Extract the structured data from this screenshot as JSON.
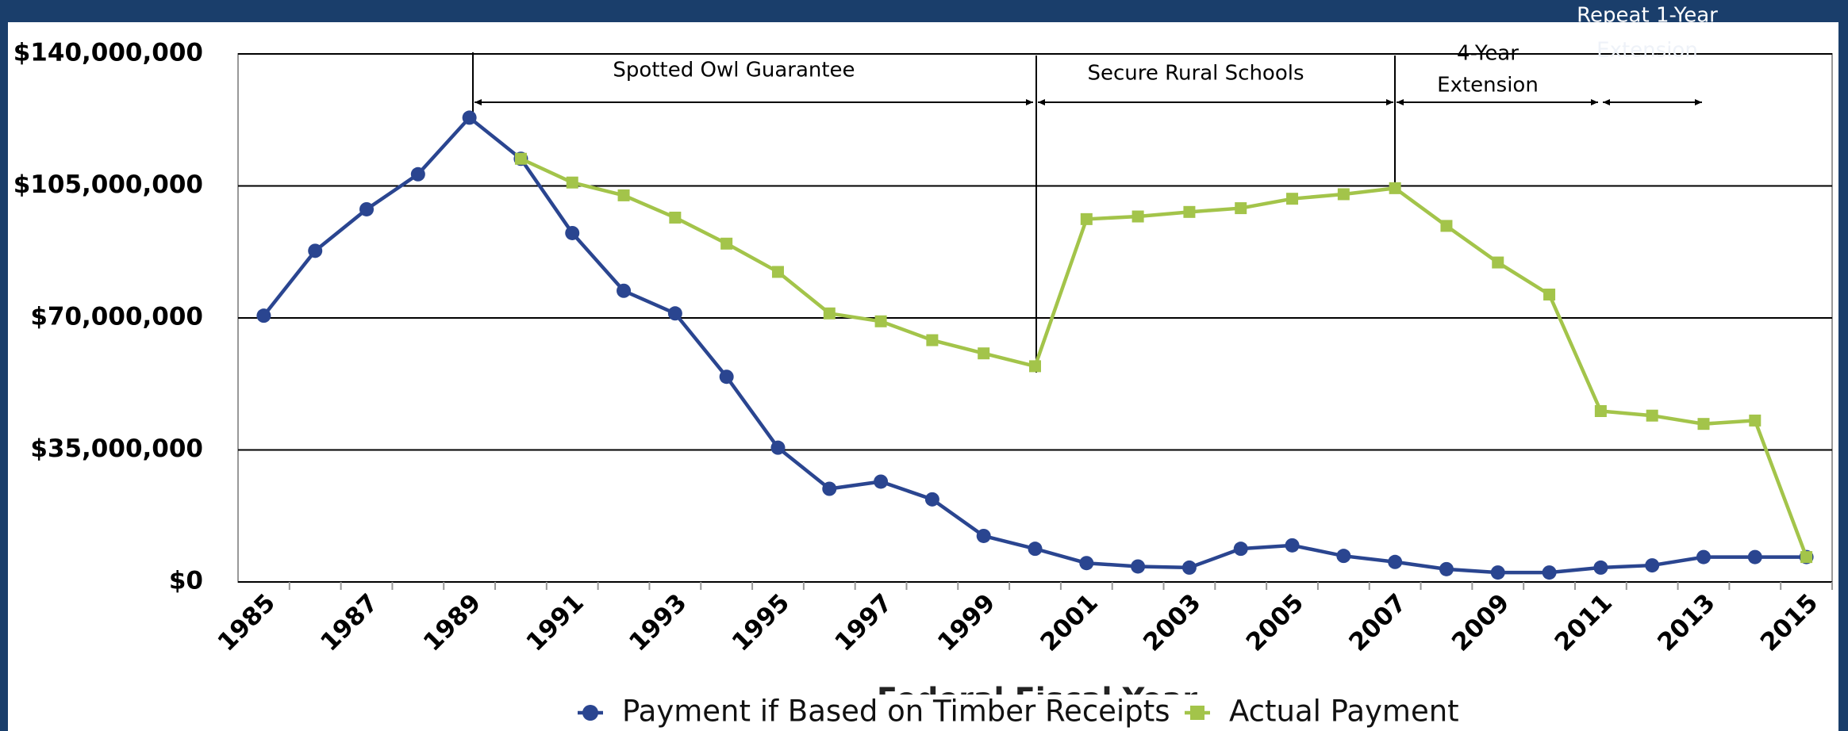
{
  "chart_data": {
    "type": "line",
    "xlabel": "Federal Fiscal Year",
    "annotations": [
      "Spotted Owl Guarantee",
      "Secure Rural Schools",
      "4-Year",
      "Extension",
      "Repeat 1-Year",
      "Extension"
    ],
    "categories": [
      "1985",
      null,
      "1987",
      null,
      "1989",
      null,
      "1991",
      null,
      "1993",
      null,
      "1995",
      null,
      "1997",
      null,
      "1999",
      null,
      "2001",
      null,
      "2003",
      null,
      "2005",
      null,
      "2007",
      null,
      "2009",
      null,
      "2011",
      null,
      "2013",
      null,
      "2015"
    ],
    "series": [
      {
        "name": "Payment if Based on Timber Receipts",
        "color": "#2a4590",
        "marker": "circle",
        "values": [
          70600000,
          87800000,
          98800000,
          108100000,
          123100000,
          112200000,
          92500000,
          77200000,
          71200000,
          54400000,
          35600000,
          24700000,
          26600000,
          21900000,
          12200000,
          8800000,
          5000000,
          4100000,
          3800000,
          8800000,
          9700000,
          6900000,
          5300000,
          3400000,
          2500000,
          2500000,
          3800000,
          4400000,
          6600000,
          6600000,
          6600000
        ]
      },
      {
        "name": "Actual Payment",
        "color": "#a3c44a",
        "marker": "square",
        "values": [
          null,
          null,
          null,
          null,
          null,
          112200000,
          105900000,
          102500000,
          96600000,
          89700000,
          82200000,
          71200000,
          69100000,
          64100000,
          60600000,
          57200000,
          96200000,
          96900000,
          98100000,
          99100000,
          101600000,
          102800000,
          104400000,
          94400000,
          84700000,
          76200000,
          45300000,
          44100000,
          41900000,
          42800000,
          6600000
        ]
      }
    ],
    "ylim": [
      0,
      140000000
    ],
    "yticks": [
      {
        "value": 0,
        "label": "$0"
      },
      {
        "value": 35000000,
        "label": "$35,000,000"
      },
      {
        "value": 70000000,
        "label": "$70,000,000"
      },
      {
        "value": 105000000,
        "label": "$105,000,000"
      },
      {
        "value": 140000000,
        "label": "$140,000,000"
      }
    ],
    "grid": true
  }
}
